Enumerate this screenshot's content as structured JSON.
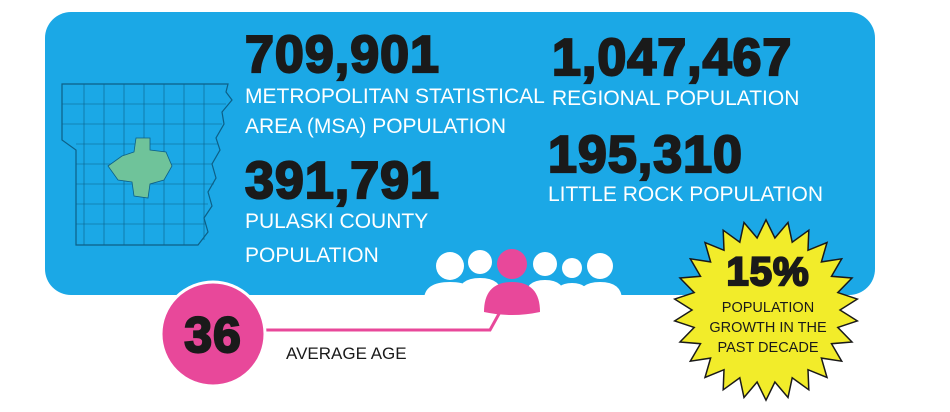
{
  "stats": [
    {
      "value": "709,901",
      "label_lines": [
        "METROPOLITAN STATISTICAL",
        "AREA (MSA) POPULATION"
      ]
    },
    {
      "value": "391,791",
      "label_lines": [
        "PULASKI COUNTY",
        "POPULATION"
      ]
    },
    {
      "value": "1,047,467",
      "label_lines": [
        "REGIONAL POPULATION"
      ]
    },
    {
      "value": "195,310",
      "label_lines": [
        "LITTLE ROCK POPULATION"
      ]
    }
  ],
  "average_age": {
    "value": "36",
    "label": "AVERAGE AGE"
  },
  "growth": {
    "value": "15%",
    "label_lines": [
      "POPULATION",
      "GROWTH IN THE",
      "PAST DECADE"
    ]
  }
}
